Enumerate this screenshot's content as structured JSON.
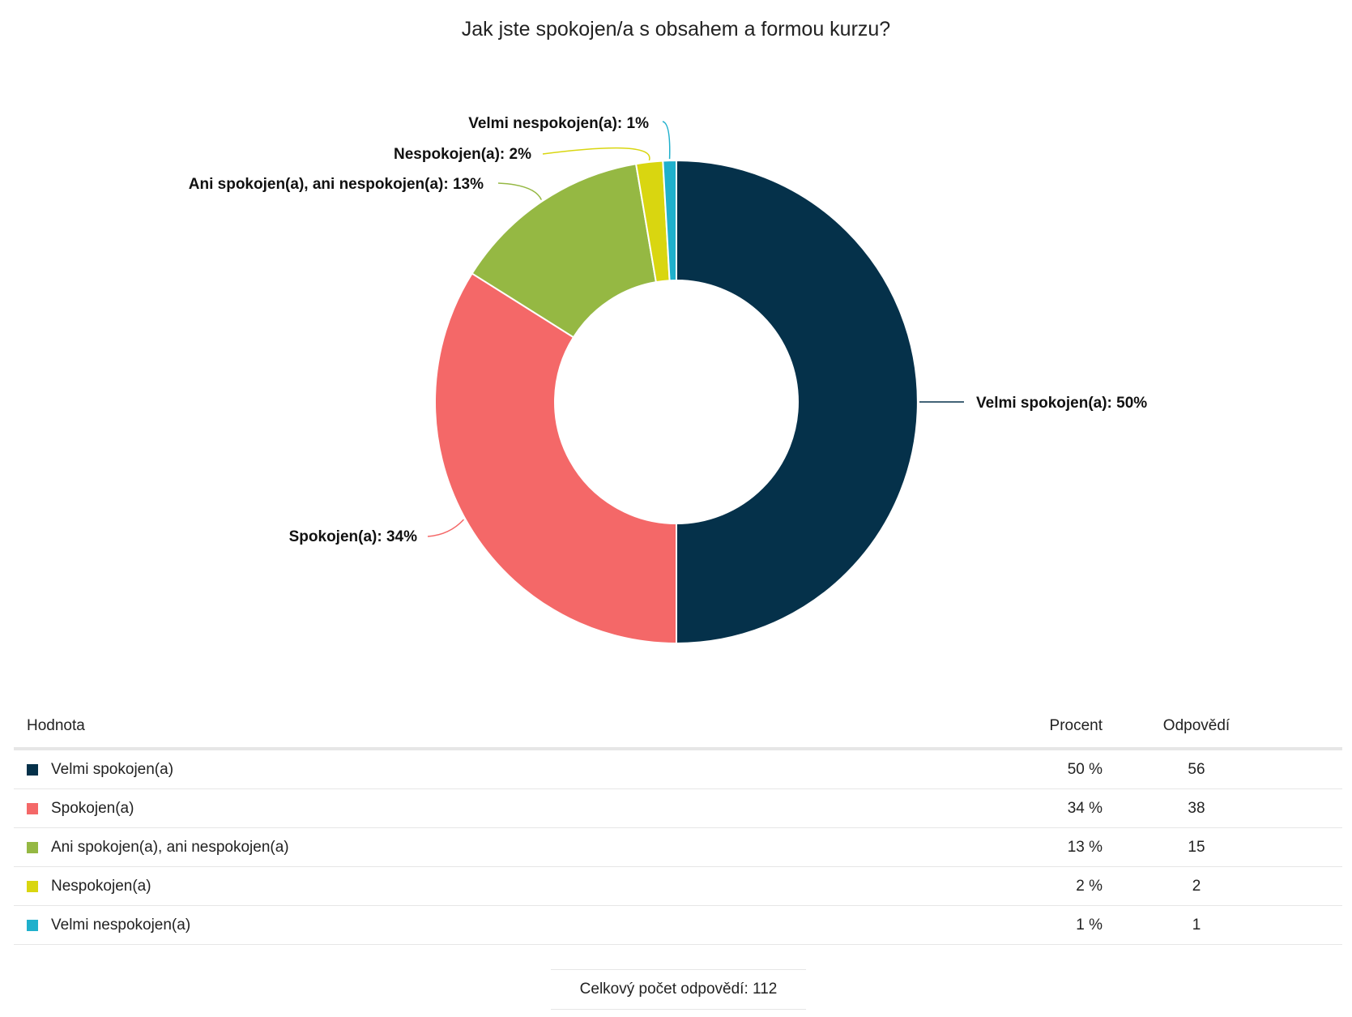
{
  "chart_data": {
    "type": "pie",
    "title": "Jak jste spokojen/a s obsahem a formou kurzu?",
    "slices": [
      {
        "label": "Velmi spokojen(a)",
        "data_label": "Velmi spokojen(a): 50%",
        "percent": 50,
        "count": 56,
        "color": "#05314a"
      },
      {
        "label": "Spokojen(a)",
        "data_label": "Spokojen(a): 34%",
        "percent": 34,
        "count": 38,
        "color": "#f46868"
      },
      {
        "label": "Ani spokojen(a), ani nespokojen(a)",
        "data_label": "Ani spokojen(a), ani nespokojen(a): 13%",
        "percent": 13,
        "count": 15,
        "color": "#95b843"
      },
      {
        "label": "Nespokojen(a)",
        "data_label": "Nespokojen(a): 2%",
        "percent": 2,
        "count": 2,
        "color": "#d9d610"
      },
      {
        "label": "Velmi nespokojen(a)",
        "data_label": "Velmi nespokojen(a): 1%",
        "percent": 1,
        "count": 1,
        "color": "#1fb0cc"
      }
    ],
    "donut": true
  },
  "table": {
    "headers": {
      "value": "Hodnota",
      "percent": "Procent",
      "count": "Odpovědí"
    },
    "rows": [
      {
        "label": "Velmi spokojen(a)",
        "percent": "50 %",
        "count": "56"
      },
      {
        "label": "Spokojen(a)",
        "percent": "34 %",
        "count": "38"
      },
      {
        "label": "Ani spokojen(a), ani nespokojen(a)",
        "percent": "13 %",
        "count": "15"
      },
      {
        "label": "Nespokojen(a)",
        "percent": "2 %",
        "count": "2"
      },
      {
        "label": "Velmi nespokojen(a)",
        "percent": "1 %",
        "count": "1"
      }
    ]
  },
  "total": {
    "label": "Celkový počet odpovědí:",
    "value": "112"
  }
}
